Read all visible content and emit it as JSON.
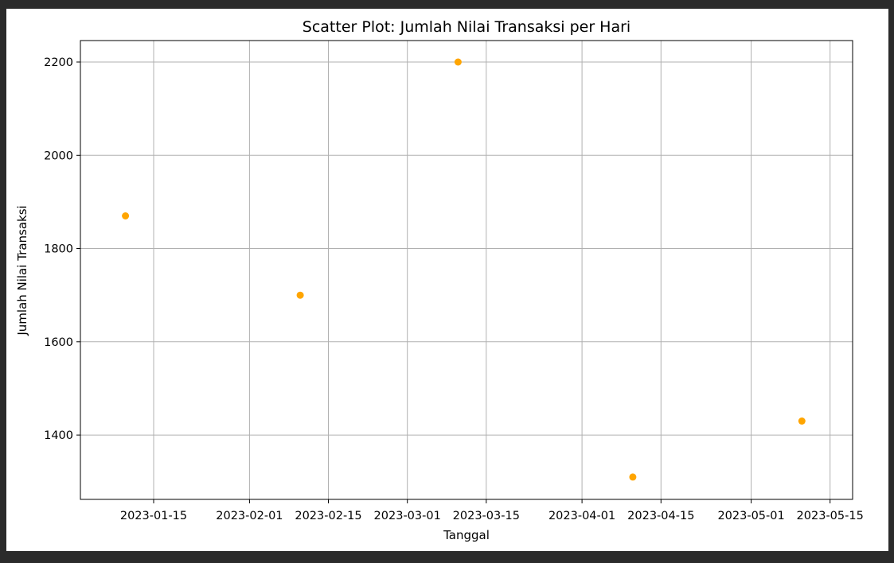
{
  "chart_data": {
    "type": "scatter",
    "title": "Scatter Plot: Jumlah Nilai Transaksi per Hari",
    "xlabel": "Tanggal",
    "ylabel": "Jumlah Nilai Transaksi",
    "grid": true,
    "marker_color": "#FFA500",
    "x_ticks": [
      "2023-01-15",
      "2023-02-01",
      "2023-02-15",
      "2023-03-01",
      "2023-03-15",
      "2023-04-01",
      "2023-04-15",
      "2023-05-01",
      "2023-05-15"
    ],
    "y_ticks": [
      1400,
      1600,
      1800,
      2000,
      2200
    ],
    "xlim": [
      "2023-01-02",
      "2023-05-19"
    ],
    "ylim": [
      1262,
      2246
    ],
    "points": [
      {
        "x": "2023-01-10",
        "y": 1870
      },
      {
        "x": "2023-02-10",
        "y": 1700
      },
      {
        "x": "2023-03-10",
        "y": 2200
      },
      {
        "x": "2023-04-10",
        "y": 1310
      },
      {
        "x": "2023-05-10",
        "y": 1430
      }
    ]
  }
}
